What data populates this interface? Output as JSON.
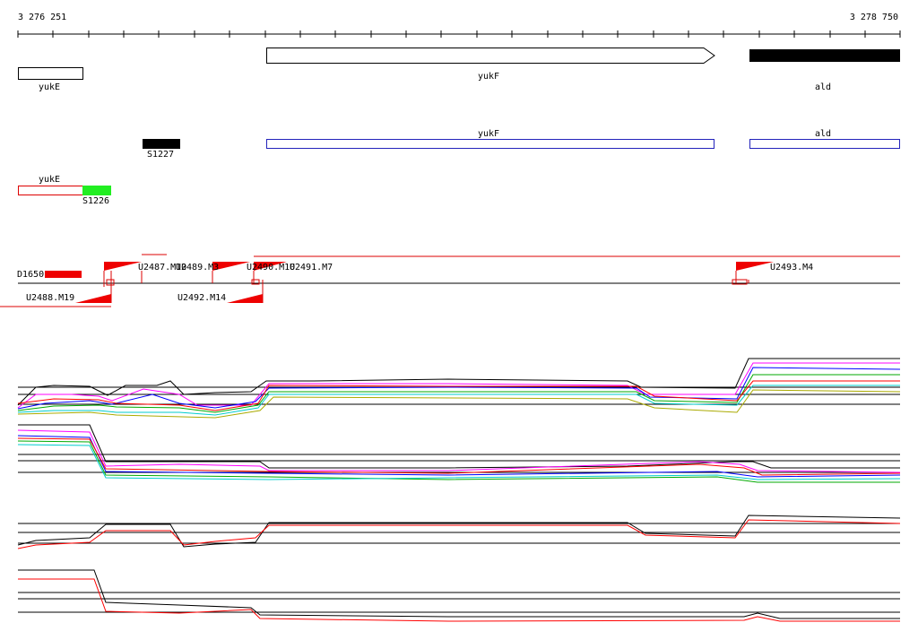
{
  "ruler": {
    "start": "3 276 251",
    "end": "3 278 750"
  },
  "genes": {
    "yukE": "yukE",
    "yukF": "yukF",
    "ald": "ald"
  },
  "annotations": {
    "yukF": "yukF",
    "ald": "ald",
    "S1227": "S1227",
    "yukE": "yukE",
    "S1226": "S1226"
  },
  "segments": {
    "D1650": "D1650",
    "U2487": "U2487.M10",
    "U2489": "U2489.M3",
    "U2490": "U2490.M10",
    "U2491": "U2491.M7",
    "U2493": "U2493.M4",
    "U2488": "U2488.M19",
    "U2492": "U2492.M14"
  }
}
